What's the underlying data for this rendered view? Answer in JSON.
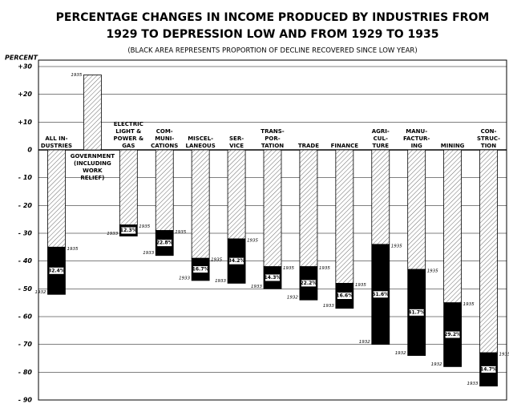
{
  "chart_data": {
    "type": "bar",
    "title": [
      "PERCENTAGE CHANGES IN INCOME PRODUCED BY INDUSTRIES FROM",
      "1929 TO DEPRESSION LOW AND FROM 1929 TO 1935"
    ],
    "subtitle": "(BLACK AREA REPRESENTS PROPORTION OF DECLINE RECOVERED SINCE LOW YEAR)",
    "y_label": "PERCENT",
    "categories": [
      [
        "ALL IN-",
        "DUSTRIES"
      ],
      [
        "GOVERNMENT",
        "(INCLUDING",
        "WORK",
        "RELIEF)"
      ],
      [
        "ELECTRIC",
        "LIGHT &",
        "POWER &",
        "GAS"
      ],
      [
        "COM-",
        "MUNI-",
        "CATIONS"
      ],
      [
        "MISCEL-",
        "LANEOUS"
      ],
      [
        "SER-",
        "VICE"
      ],
      [
        "TRANS-",
        "POR-",
        "TATION"
      ],
      [
        "TRADE"
      ],
      [
        "FINANCE"
      ],
      [
        "AGRI-",
        "CUL-",
        "TURE"
      ],
      [
        "MANU-",
        "FACTUR-",
        "ING"
      ],
      [
        "MINING"
      ],
      [
        "CON-",
        "STRUC-",
        "TION"
      ]
    ],
    "series": [
      {
        "name": "1935",
        "color": "#ffffff",
        "values": [
          -35,
          27,
          -27,
          -29,
          -39,
          -32,
          -42,
          -42,
          -48,
          -34,
          -43,
          -55,
          -73
        ]
      },
      {
        "color": "#000000",
        "values": [
          -52,
          null,
          -31,
          -38,
          -47,
          -48,
          -50,
          -54,
          -57,
          -70,
          -74,
          -78,
          -85
        ],
        "year_labels": [
          "1932",
          null,
          "1933",
          "1933",
          "1933",
          "1933",
          "1933",
          "1932",
          "1933",
          "1932",
          "1932",
          "1932",
          "1933"
        ],
        "value_labels": [
          "32.4%",
          null,
          "12.3%",
          "22.8%",
          "16.7%",
          "34.2%",
          "14.3%",
          "22.2%",
          "16.6%",
          "51.6%",
          "41.7%",
          "29.2%",
          "14.7%"
        ]
      }
    ],
    "ylim": [
      -90,
      30
    ],
    "yticks": [
      {
        "value": 30,
        "label": "+30"
      },
      {
        "value": 20,
        "label": "+20"
      },
      {
        "value": 10,
        "label": "+10"
      },
      0,
      {
        "value": -10,
        "label": "- 10"
      },
      {
        "value": -20,
        "label": "- 20"
      },
      {
        "value": -30,
        "label": "- 30"
      },
      {
        "value": -40,
        "label": "- 40"
      },
      {
        "value": -50,
        "label": "- 50"
      },
      {
        "value": -60,
        "label": "- 60"
      },
      {
        "value": -70,
        "label": "- 70"
      },
      {
        "value": -80,
        "label": "- 80"
      },
      {
        "value": -90,
        "label": "- 90"
      }
    ],
    "grid": true
  }
}
